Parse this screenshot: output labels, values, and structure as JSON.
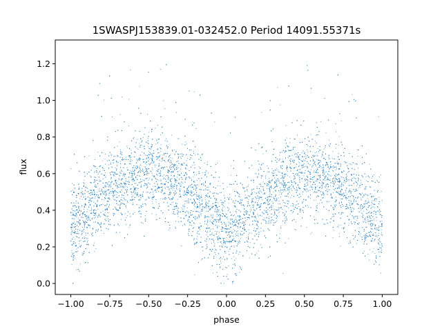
{
  "chart_data": {
    "type": "scatter",
    "title": "1SWASPJ153839.01-032452.0 Period 14091.55371s",
    "xlabel": "phase",
    "ylabel": "flux",
    "xlim": [
      -1.1,
      1.1
    ],
    "ylim": [
      -0.06,
      1.33
    ],
    "x_ticks": [
      -1.0,
      -0.75,
      -0.5,
      -0.25,
      0.0,
      0.25,
      0.5,
      0.75,
      1.0
    ],
    "x_tick_labels": [
      "−1.00",
      "−0.75",
      "−0.50",
      "−0.25",
      "0.00",
      "0.25",
      "0.50",
      "0.75",
      "1.00"
    ],
    "y_ticks": [
      0.0,
      0.2,
      0.4,
      0.6,
      0.8,
      1.0,
      1.2
    ],
    "y_tick_labels": [
      "0.0",
      "0.2",
      "0.4",
      "0.6",
      "0.8",
      "1.0",
      "1.2"
    ],
    "grid": false,
    "legend": "none",
    "marker_color": "#1f77b4",
    "series": [
      {
        "description_of_shape": "folded light curve",
        "x": [
          -1.0,
          -0.9,
          -0.8,
          -0.7,
          -0.6,
          -0.5,
          -0.4,
          -0.3,
          -0.2,
          -0.1,
          0.0,
          0.1,
          0.2,
          0.3,
          0.4,
          0.5,
          0.6,
          0.7,
          0.8,
          0.9,
          1.0
        ],
        "y_mean": [
          0.3,
          0.38,
          0.48,
          0.55,
          0.58,
          0.6,
          0.58,
          0.53,
          0.45,
          0.36,
          0.28,
          0.32,
          0.42,
          0.5,
          0.56,
          0.6,
          0.58,
          0.54,
          0.47,
          0.38,
          0.3
        ],
        "y_spread": 0.12
      }
    ]
  }
}
